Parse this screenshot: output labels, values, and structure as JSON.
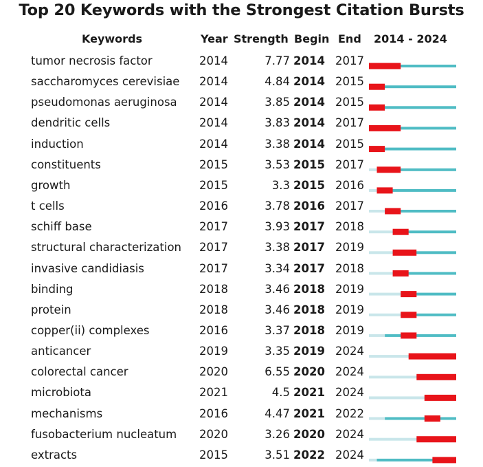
{
  "chart_data": {
    "type": "table",
    "title": "Top 20 Keywords with the Strongest Citation Bursts",
    "headers": {
      "keywords": "Keywords",
      "year": "Year",
      "strength": "Strength",
      "begin": "Begin",
      "end": "End",
      "range": "2014 - 2024"
    },
    "range_start": 2014,
    "range_end": 2024,
    "colors": {
      "burst": "#e8141a",
      "active": "#4fbcc4",
      "inactive": "#c9e6ea"
    },
    "rows": [
      {
        "keyword": "tumor necrosis factor",
        "year": "2014",
        "strength": "7.77",
        "begin": "2014",
        "end": "2017"
      },
      {
        "keyword": "saccharomyces cerevisiae",
        "year": "2014",
        "strength": "4.84",
        "begin": "2014",
        "end": "2015"
      },
      {
        "keyword": "pseudomonas aeruginosa",
        "year": "2014",
        "strength": "3.85",
        "begin": "2014",
        "end": "2015"
      },
      {
        "keyword": "dendritic cells",
        "year": "2014",
        "strength": "3.83",
        "begin": "2014",
        "end": "2017"
      },
      {
        "keyword": "induction",
        "year": "2014",
        "strength": "3.38",
        "begin": "2014",
        "end": "2015"
      },
      {
        "keyword": "constituents",
        "year": "2015",
        "strength": "3.53",
        "begin": "2015",
        "end": "2017"
      },
      {
        "keyword": "growth",
        "year": "2015",
        "strength": "3.3",
        "begin": "2015",
        "end": "2016"
      },
      {
        "keyword": "t cells",
        "year": "2016",
        "strength": "3.78",
        "begin": "2016",
        "end": "2017"
      },
      {
        "keyword": "schiff base",
        "year": "2017",
        "strength": "3.93",
        "begin": "2017",
        "end": "2018"
      },
      {
        "keyword": "structural characterization",
        "year": "2017",
        "strength": "3.38",
        "begin": "2017",
        "end": "2019"
      },
      {
        "keyword": "invasive candidiasis",
        "year": "2017",
        "strength": "3.34",
        "begin": "2017",
        "end": "2018"
      },
      {
        "keyword": "binding",
        "year": "2018",
        "strength": "3.46",
        "begin": "2018",
        "end": "2019"
      },
      {
        "keyword": "protein",
        "year": "2018",
        "strength": "3.46",
        "begin": "2018",
        "end": "2019"
      },
      {
        "keyword": "copper(ii) complexes",
        "year": "2016",
        "strength": "3.37",
        "begin": "2018",
        "end": "2019"
      },
      {
        "keyword": "anticancer",
        "year": "2019",
        "strength": "3.35",
        "begin": "2019",
        "end": "2024"
      },
      {
        "keyword": "colorectal cancer",
        "year": "2020",
        "strength": "6.55",
        "begin": "2020",
        "end": "2024"
      },
      {
        "keyword": "microbiota",
        "year": "2021",
        "strength": "4.5",
        "begin": "2021",
        "end": "2024"
      },
      {
        "keyword": "mechanisms",
        "year": "2016",
        "strength": "4.47",
        "begin": "2021",
        "end": "2022"
      },
      {
        "keyword": "fusobacterium nucleatum",
        "year": "2020",
        "strength": "3.26",
        "begin": "2020",
        "end": "2024"
      },
      {
        "keyword": "extracts",
        "year": "2015",
        "strength": "3.51",
        "begin": "2022",
        "end": "2024"
      }
    ]
  }
}
